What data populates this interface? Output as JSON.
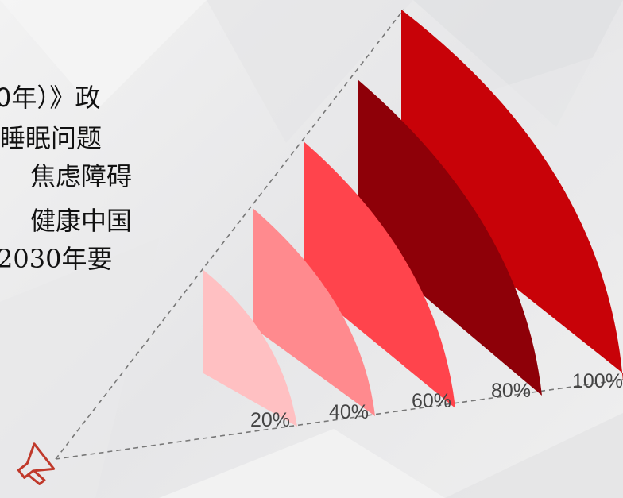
{
  "text_lines": [
    "0年）》政",
    "睡眠问题",
    "焦虑障碍",
    "健康中国",
    "2030年要"
  ],
  "fans": [
    {
      "label": "20%",
      "color": "#ffc0c2"
    },
    {
      "label": "40%",
      "color": "#ff8a8e"
    },
    {
      "label": "60%",
      "color": "#ff444c"
    },
    {
      "label": "80%",
      "color": "#8e0008"
    },
    {
      "label": "100%",
      "color": "#c80208"
    }
  ],
  "colors": {
    "guide_line": "#777777",
    "background": "#ececec"
  },
  "icon": "megaphone-icon"
}
